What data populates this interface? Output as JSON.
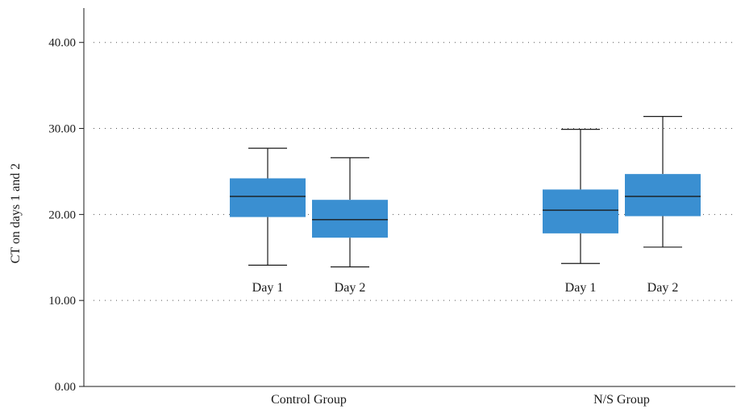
{
  "chart_data": {
    "type": "boxplot",
    "title": "",
    "ylabel": "CT on days 1 and 2",
    "xlabel": "",
    "ylim": [
      0,
      44
    ],
    "yticks": [
      0,
      10,
      20,
      30,
      40
    ],
    "ytick_labels": [
      "0.00",
      "10.00",
      "20.00",
      "30.00",
      "40.00"
    ],
    "grid": "horizontal dotted",
    "box_color": "#3a8fd1",
    "groups": [
      {
        "label": "Control Group",
        "boxes": [
          {
            "label": "Day 1",
            "min": 14.1,
            "q1": 19.7,
            "median": 22.1,
            "q3": 24.2,
            "max": 27.7
          },
          {
            "label": "Day 2",
            "min": 13.9,
            "q1": 17.3,
            "median": 19.4,
            "q3": 21.7,
            "max": 26.6
          }
        ]
      },
      {
        "label": "N/S Group",
        "boxes": [
          {
            "label": "Day 1",
            "min": 14.3,
            "q1": 17.8,
            "median": 20.5,
            "q3": 22.9,
            "max": 29.9
          },
          {
            "label": "Day 2",
            "min": 16.2,
            "q1": 19.8,
            "median": 22.1,
            "q3": 24.7,
            "max": 31.4
          }
        ]
      }
    ]
  }
}
